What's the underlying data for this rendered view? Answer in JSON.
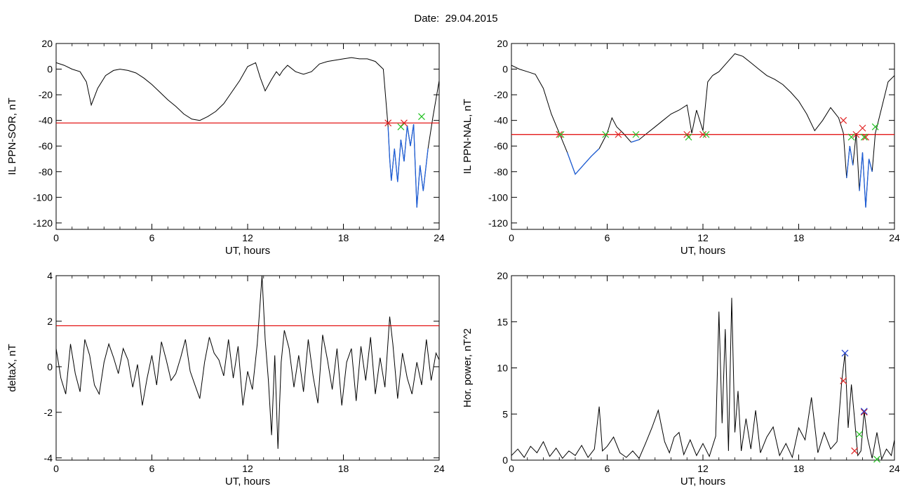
{
  "figure": {
    "date_label": "Date:",
    "date_value": "29.04.2015"
  },
  "colors": {
    "trace": "#000000",
    "threshold": "#e00000",
    "below": "#1f5fd8",
    "marker_start": "#e02020",
    "marker_end": "#20c020",
    "marker_peak": "#2040d0"
  },
  "chart_data": [
    {
      "type": "line",
      "title": "",
      "xlabel": "UT, hours",
      "ylabel": "IL PPN-SOR, nT",
      "xlim": [
        0,
        24
      ],
      "ylim": [
        -125,
        20
      ],
      "x_ticks": [
        "0",
        "6",
        "12",
        "18",
        "24"
      ],
      "y_ticks": [
        "20",
        "0",
        "-20",
        "-40",
        "-60",
        "-80",
        "-100",
        "-120"
      ],
      "threshold": -42,
      "series": [
        {
          "x": [
            0,
            0.5,
            1,
            1.5,
            1.9,
            2.2,
            2.6,
            3.1,
            3.6,
            4.0,
            4.5,
            5.0,
            5.5,
            6.0,
            6.5,
            7.0,
            7.5,
            8.0,
            8.5,
            9.0,
            9.5,
            10.0,
            10.5,
            11.0,
            11.5,
            12.0,
            12.5,
            12.8,
            13.1,
            13.5,
            13.8,
            14.0,
            14.2,
            14.5,
            15.0,
            15.5,
            16.0,
            16.5,
            17.0,
            17.5,
            18.0,
            18.5,
            19.0,
            19.5,
            20.0,
            20.5,
            20.8,
            20.9,
            21.0,
            21.2,
            21.4,
            21.6,
            21.8,
            22.0,
            22.2,
            22.4,
            22.6,
            22.8,
            23.0,
            23.3,
            23.6,
            24.0
          ],
          "y": [
            5,
            3,
            0,
            -2,
            -10,
            -28,
            -15,
            -5,
            -1,
            0,
            -1,
            -3,
            -7,
            -12,
            -18,
            -24,
            -29,
            -35,
            -39,
            -40,
            -37,
            -33,
            -27,
            -18,
            -9,
            2,
            5,
            -7,
            -17,
            -8,
            -2,
            -5,
            -1,
            3,
            -2,
            -4,
            -2,
            4,
            6,
            7,
            8,
            9,
            8,
            8,
            6,
            0,
            -45,
            -70,
            -87,
            -62,
            -88,
            -55,
            -72,
            -44,
            -60,
            -43,
            -108,
            -75,
            -95,
            -62,
            -38,
            -9
          ]
        }
      ],
      "markers_start": [
        [
          20.8,
          -42
        ],
        [
          21.8,
          -42
        ]
      ],
      "markers_end": [
        [
          21.6,
          -45
        ],
        [
          22.9,
          -37
        ]
      ]
    },
    {
      "type": "line",
      "title": "",
      "xlabel": "UT, hours",
      "ylabel": "IL PPN-NAL, nT",
      "xlim": [
        0,
        24
      ],
      "ylim": [
        -125,
        20
      ],
      "x_ticks": [
        "0",
        "6",
        "12",
        "18",
        "24"
      ],
      "y_ticks": [
        "20",
        "0",
        "-20",
        "-40",
        "-60",
        "-80",
        "-100",
        "-120"
      ],
      "threshold": -51,
      "series": [
        {
          "x": [
            0,
            0.5,
            1,
            1.5,
            2.0,
            2.5,
            3.0,
            3.5,
            4.0,
            4.5,
            5.0,
            5.5,
            6.0,
            6.3,
            6.6,
            7.0,
            7.5,
            8.0,
            8.5,
            9.0,
            9.5,
            10.0,
            10.5,
            11.0,
            11.3,
            11.6,
            12.0,
            12.3,
            12.6,
            13.0,
            13.5,
            14.0,
            14.5,
            15.0,
            15.5,
            16.0,
            16.5,
            17.0,
            17.5,
            18.0,
            18.5,
            19.0,
            19.5,
            20.0,
            20.5,
            20.8,
            21.0,
            21.2,
            21.4,
            21.6,
            21.8,
            22.0,
            22.2,
            22.4,
            22.6,
            22.8,
            23.0,
            23.3,
            23.6,
            24.0
          ],
          "y": [
            3,
            0,
            -2,
            -4,
            -15,
            -35,
            -50,
            -65,
            -82,
            -75,
            -68,
            -62,
            -50,
            -38,
            -45,
            -50,
            -57,
            -55,
            -50,
            -45,
            -40,
            -35,
            -32,
            -28,
            -50,
            -32,
            -48,
            -10,
            -5,
            -2,
            5,
            12,
            10,
            5,
            0,
            -5,
            -8,
            -12,
            -18,
            -25,
            -35,
            -48,
            -40,
            -30,
            -38,
            -50,
            -85,
            -60,
            -75,
            -50,
            -95,
            -65,
            -108,
            -70,
            -80,
            -50,
            -40,
            -25,
            -10,
            -5
          ]
        }
      ],
      "markers_start": [
        [
          3.0,
          -51
        ],
        [
          6.7,
          -51
        ],
        [
          11.0,
          -51
        ],
        [
          12.0,
          -51
        ],
        [
          20.8,
          -40
        ],
        [
          21.6,
          -51
        ],
        [
          22.0,
          -46
        ],
        [
          22.2,
          -53
        ]
      ],
      "markers_end": [
        [
          3.1,
          -51
        ],
        [
          5.9,
          -51
        ],
        [
          7.8,
          -51
        ],
        [
          11.1,
          -53
        ],
        [
          12.2,
          -51
        ],
        [
          21.3,
          -53
        ],
        [
          22.1,
          -53
        ],
        [
          22.8,
          -45
        ]
      ]
    },
    {
      "type": "line",
      "title": "",
      "xlabel": "UT, hours",
      "ylabel": "deltaX, nT",
      "xlim": [
        0,
        24
      ],
      "ylim": [
        -4.1,
        4.0
      ],
      "x_ticks": [
        "0",
        "6",
        "12",
        "18",
        "24"
      ],
      "y_ticks": [
        "4",
        "2",
        "0",
        "-2",
        "-4"
      ],
      "threshold": 1.8,
      "series": [
        {
          "x": [
            0,
            0.3,
            0.6,
            0.9,
            1.2,
            1.5,
            1.8,
            2.1,
            2.4,
            2.7,
            3.0,
            3.3,
            3.6,
            3.9,
            4.2,
            4.5,
            4.8,
            5.1,
            5.4,
            5.7,
            6.0,
            6.3,
            6.6,
            6.9,
            7.2,
            7.5,
            7.8,
            8.1,
            8.4,
            8.7,
            9.0,
            9.3,
            9.6,
            9.9,
            10.2,
            10.5,
            10.8,
            11.1,
            11.4,
            11.7,
            12.0,
            12.3,
            12.6,
            12.9,
            13.1,
            13.3,
            13.5,
            13.7,
            13.9,
            14.1,
            14.3,
            14.6,
            14.9,
            15.2,
            15.5,
            15.8,
            16.1,
            16.4,
            16.7,
            17.0,
            17.3,
            17.6,
            17.9,
            18.2,
            18.5,
            18.8,
            19.1,
            19.4,
            19.7,
            20.0,
            20.3,
            20.6,
            20.9,
            21.1,
            21.4,
            21.7,
            22.0,
            22.3,
            22.6,
            22.9,
            23.2,
            23.5,
            23.8,
            24.0
          ],
          "y": [
            0.8,
            -0.5,
            -1.2,
            1.0,
            -0.3,
            -1.1,
            1.2,
            0.5,
            -0.8,
            -1.2,
            0.2,
            1.0,
            0.4,
            -0.3,
            0.8,
            0.3,
            -0.9,
            0.1,
            -1.7,
            -0.5,
            0.5,
            -0.8,
            1.1,
            0.3,
            -0.6,
            -0.3,
            0.4,
            1.2,
            -0.2,
            -0.8,
            -1.4,
            0.2,
            1.3,
            0.6,
            0.3,
            -0.4,
            1.2,
            -0.5,
            0.9,
            -1.7,
            -0.2,
            -1.0,
            1.0,
            4.0,
            1.2,
            -0.6,
            -3.0,
            0.5,
            -3.6,
            0.2,
            1.6,
            0.8,
            -0.9,
            0.5,
            -1.1,
            1.2,
            -0.4,
            -1.6,
            1.4,
            0.3,
            -1.0,
            0.8,
            -1.7,
            0.2,
            0.8,
            -1.5,
            0.9,
            -0.6,
            1.3,
            -1.2,
            0.4,
            -0.9,
            2.2,
            1.0,
            -1.4,
            0.6,
            -0.5,
            -1.2,
            0.2,
            -0.8,
            1.2,
            -0.6,
            0.6,
            0.3
          ]
        }
      ]
    },
    {
      "type": "line",
      "title": "",
      "xlabel": "UT, hours",
      "ylabel": "Hor. power, nT^2",
      "xlim": [
        0,
        24
      ],
      "ylim": [
        0,
        20
      ],
      "x_ticks": [
        "0",
        "6",
        "12",
        "18",
        "24"
      ],
      "y_ticks": [
        "20",
        "15",
        "10",
        "5",
        "0"
      ],
      "series": [
        {
          "x": [
            0,
            0.4,
            0.8,
            1.2,
            1.6,
            2.0,
            2.4,
            2.8,
            3.2,
            3.6,
            4.0,
            4.4,
            4.8,
            5.2,
            5.5,
            5.7,
            6.0,
            6.4,
            6.8,
            7.2,
            7.6,
            8.0,
            8.4,
            8.8,
            9.2,
            9.6,
            9.9,
            10.2,
            10.5,
            10.8,
            11.2,
            11.6,
            12.0,
            12.4,
            12.8,
            13.0,
            13.2,
            13.4,
            13.6,
            13.8,
            14.0,
            14.2,
            14.4,
            14.7,
            15.0,
            15.3,
            15.6,
            16.0,
            16.4,
            16.8,
            17.2,
            17.6,
            18.0,
            18.4,
            18.8,
            19.2,
            19.6,
            20.0,
            20.4,
            20.7,
            20.9,
            21.1,
            21.3,
            21.5,
            21.7,
            21.9,
            22.1,
            22.3,
            22.6,
            22.9,
            23.2,
            23.5,
            23.8,
            24.0
          ],
          "y": [
            0.5,
            1.2,
            0.3,
            1.5,
            0.8,
            2.0,
            0.4,
            1.3,
            0.2,
            1.0,
            0.5,
            1.6,
            0.3,
            1.2,
            5.8,
            1.0,
            1.5,
            2.5,
            0.8,
            0.3,
            1.0,
            0.2,
            1.8,
            3.5,
            5.4,
            2.0,
            0.8,
            2.5,
            3.0,
            0.6,
            2.2,
            0.5,
            1.8,
            0.4,
            2.6,
            16.1,
            4.0,
            14.2,
            1.0,
            17.6,
            3.0,
            7.5,
            1.0,
            4.5,
            1.2,
            5.4,
            0.8,
            2.5,
            3.6,
            0.5,
            1.8,
            0.3,
            3.5,
            2.2,
            6.8,
            0.8,
            3.0,
            1.2,
            2.0,
            8.6,
            11.6,
            3.5,
            8.2,
            4.5,
            0.5,
            1.0,
            5.3,
            2.5,
            0.2,
            3.0,
            0.1,
            1.2,
            0.5,
            2.2
          ]
        }
      ],
      "markers_start": [
        [
          20.8,
          8.6
        ],
        [
          21.5,
          1.0
        ],
        [
          22.1,
          5.2
        ]
      ],
      "markers_end": [
        [
          21.8,
          2.8
        ],
        [
          22.9,
          0.1
        ]
      ],
      "markers_peak": [
        [
          20.9,
          11.6
        ],
        [
          22.1,
          5.3
        ]
      ]
    }
  ]
}
